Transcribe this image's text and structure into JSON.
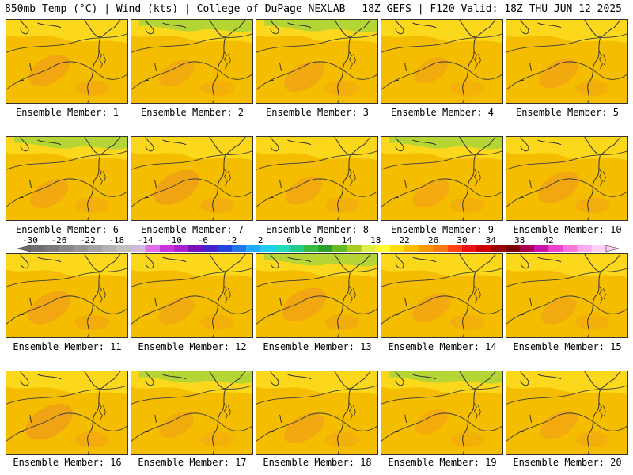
{
  "header": {
    "title_left": "850mb Temp (°C) | Wind (kts) | College of DuPage NEXLAB",
    "title_right": "18Z GEFS | F120 Valid: 18Z THU JUN 12 2025"
  },
  "colors": {
    "base_field": "#f5bd00",
    "warm_patch": "#f09a1a",
    "cool_yellow": "#ffee33",
    "cool_green": "#a8d53a",
    "coast_line": "#333333",
    "contour_line": "#3d3d3d"
  },
  "members": [
    {
      "label": "Ensemble Member: 1",
      "greens": false,
      "warm": 0.55
    },
    {
      "label": "Ensemble Member: 2",
      "greens": true,
      "warm": 0.35
    },
    {
      "label": "Ensemble Member: 3",
      "greens": true,
      "warm": 0.5
    },
    {
      "label": "Ensemble Member: 4",
      "greens": false,
      "warm": 0.3
    },
    {
      "label": "Ensemble Member: 5",
      "greens": false,
      "warm": 0.45
    },
    {
      "label": "Ensemble Member: 6",
      "greens": true,
      "warm": 0.45
    },
    {
      "label": "Ensemble Member: 7",
      "greens": false,
      "warm": 0.7
    },
    {
      "label": "Ensemble Member: 8",
      "greens": false,
      "warm": 0.4
    },
    {
      "label": "Ensemble Member: 9",
      "greens": true,
      "warm": 0.4
    },
    {
      "label": "Ensemble Member: 10",
      "greens": false,
      "warm": 0.55
    },
    {
      "label": "Ensemble Member: 11",
      "greens": false,
      "warm": 0.6
    },
    {
      "label": "Ensemble Member: 12",
      "greens": false,
      "warm": 0.35
    },
    {
      "label": "Ensemble Member: 13",
      "greens": true,
      "warm": 0.65
    },
    {
      "label": "Ensemble Member: 14",
      "greens": false,
      "warm": 0.45
    },
    {
      "label": "Ensemble Member: 15",
      "greens": false,
      "warm": 0.35
    },
    {
      "label": "Ensemble Member: 16",
      "greens": false,
      "warm": 0.75
    },
    {
      "label": "Ensemble Member: 17",
      "greens": true,
      "warm": 0.3
    },
    {
      "label": "Ensemble Member: 18",
      "greens": false,
      "warm": 0.5
    },
    {
      "label": "Ensemble Member: 19",
      "greens": true,
      "warm": 0.25
    },
    {
      "label": "Ensemble Member: 20",
      "greens": false,
      "warm": 0.4
    }
  ],
  "colorbar": {
    "labels": [
      "-30",
      "-26",
      "-22",
      "-18",
      "-14",
      "-10",
      "-6",
      "-2",
      "2",
      "6",
      "10",
      "14",
      "18",
      "22",
      "26",
      "30",
      "34",
      "38",
      "42"
    ],
    "colors": [
      "#6e6e6e",
      "#7a7a7a",
      "#888888",
      "#969696",
      "#a4a4a4",
      "#b2b2b2",
      "#c0c0c0",
      "#d0b8e0",
      "#e070e8",
      "#cc33dd",
      "#aa22cc",
      "#7711bb",
      "#4422cc",
      "#2244dd",
      "#2277ee",
      "#22aaff",
      "#22ccee",
      "#22ddbb",
      "#22cc88",
      "#33bb44",
      "#2e9e2e",
      "#66bb22",
      "#aacc22",
      "#ddee44",
      "#ffff33",
      "#ffdd11",
      "#ffbb00",
      "#ff9900",
      "#ff7711",
      "#ff4411",
      "#ee1111",
      "#cc0000",
      "#990000",
      "#7a0000",
      "#aa0055",
      "#cc11aa",
      "#ee44cc",
      "#ff77dd",
      "#ffaaee",
      "#ffcff5"
    ]
  }
}
